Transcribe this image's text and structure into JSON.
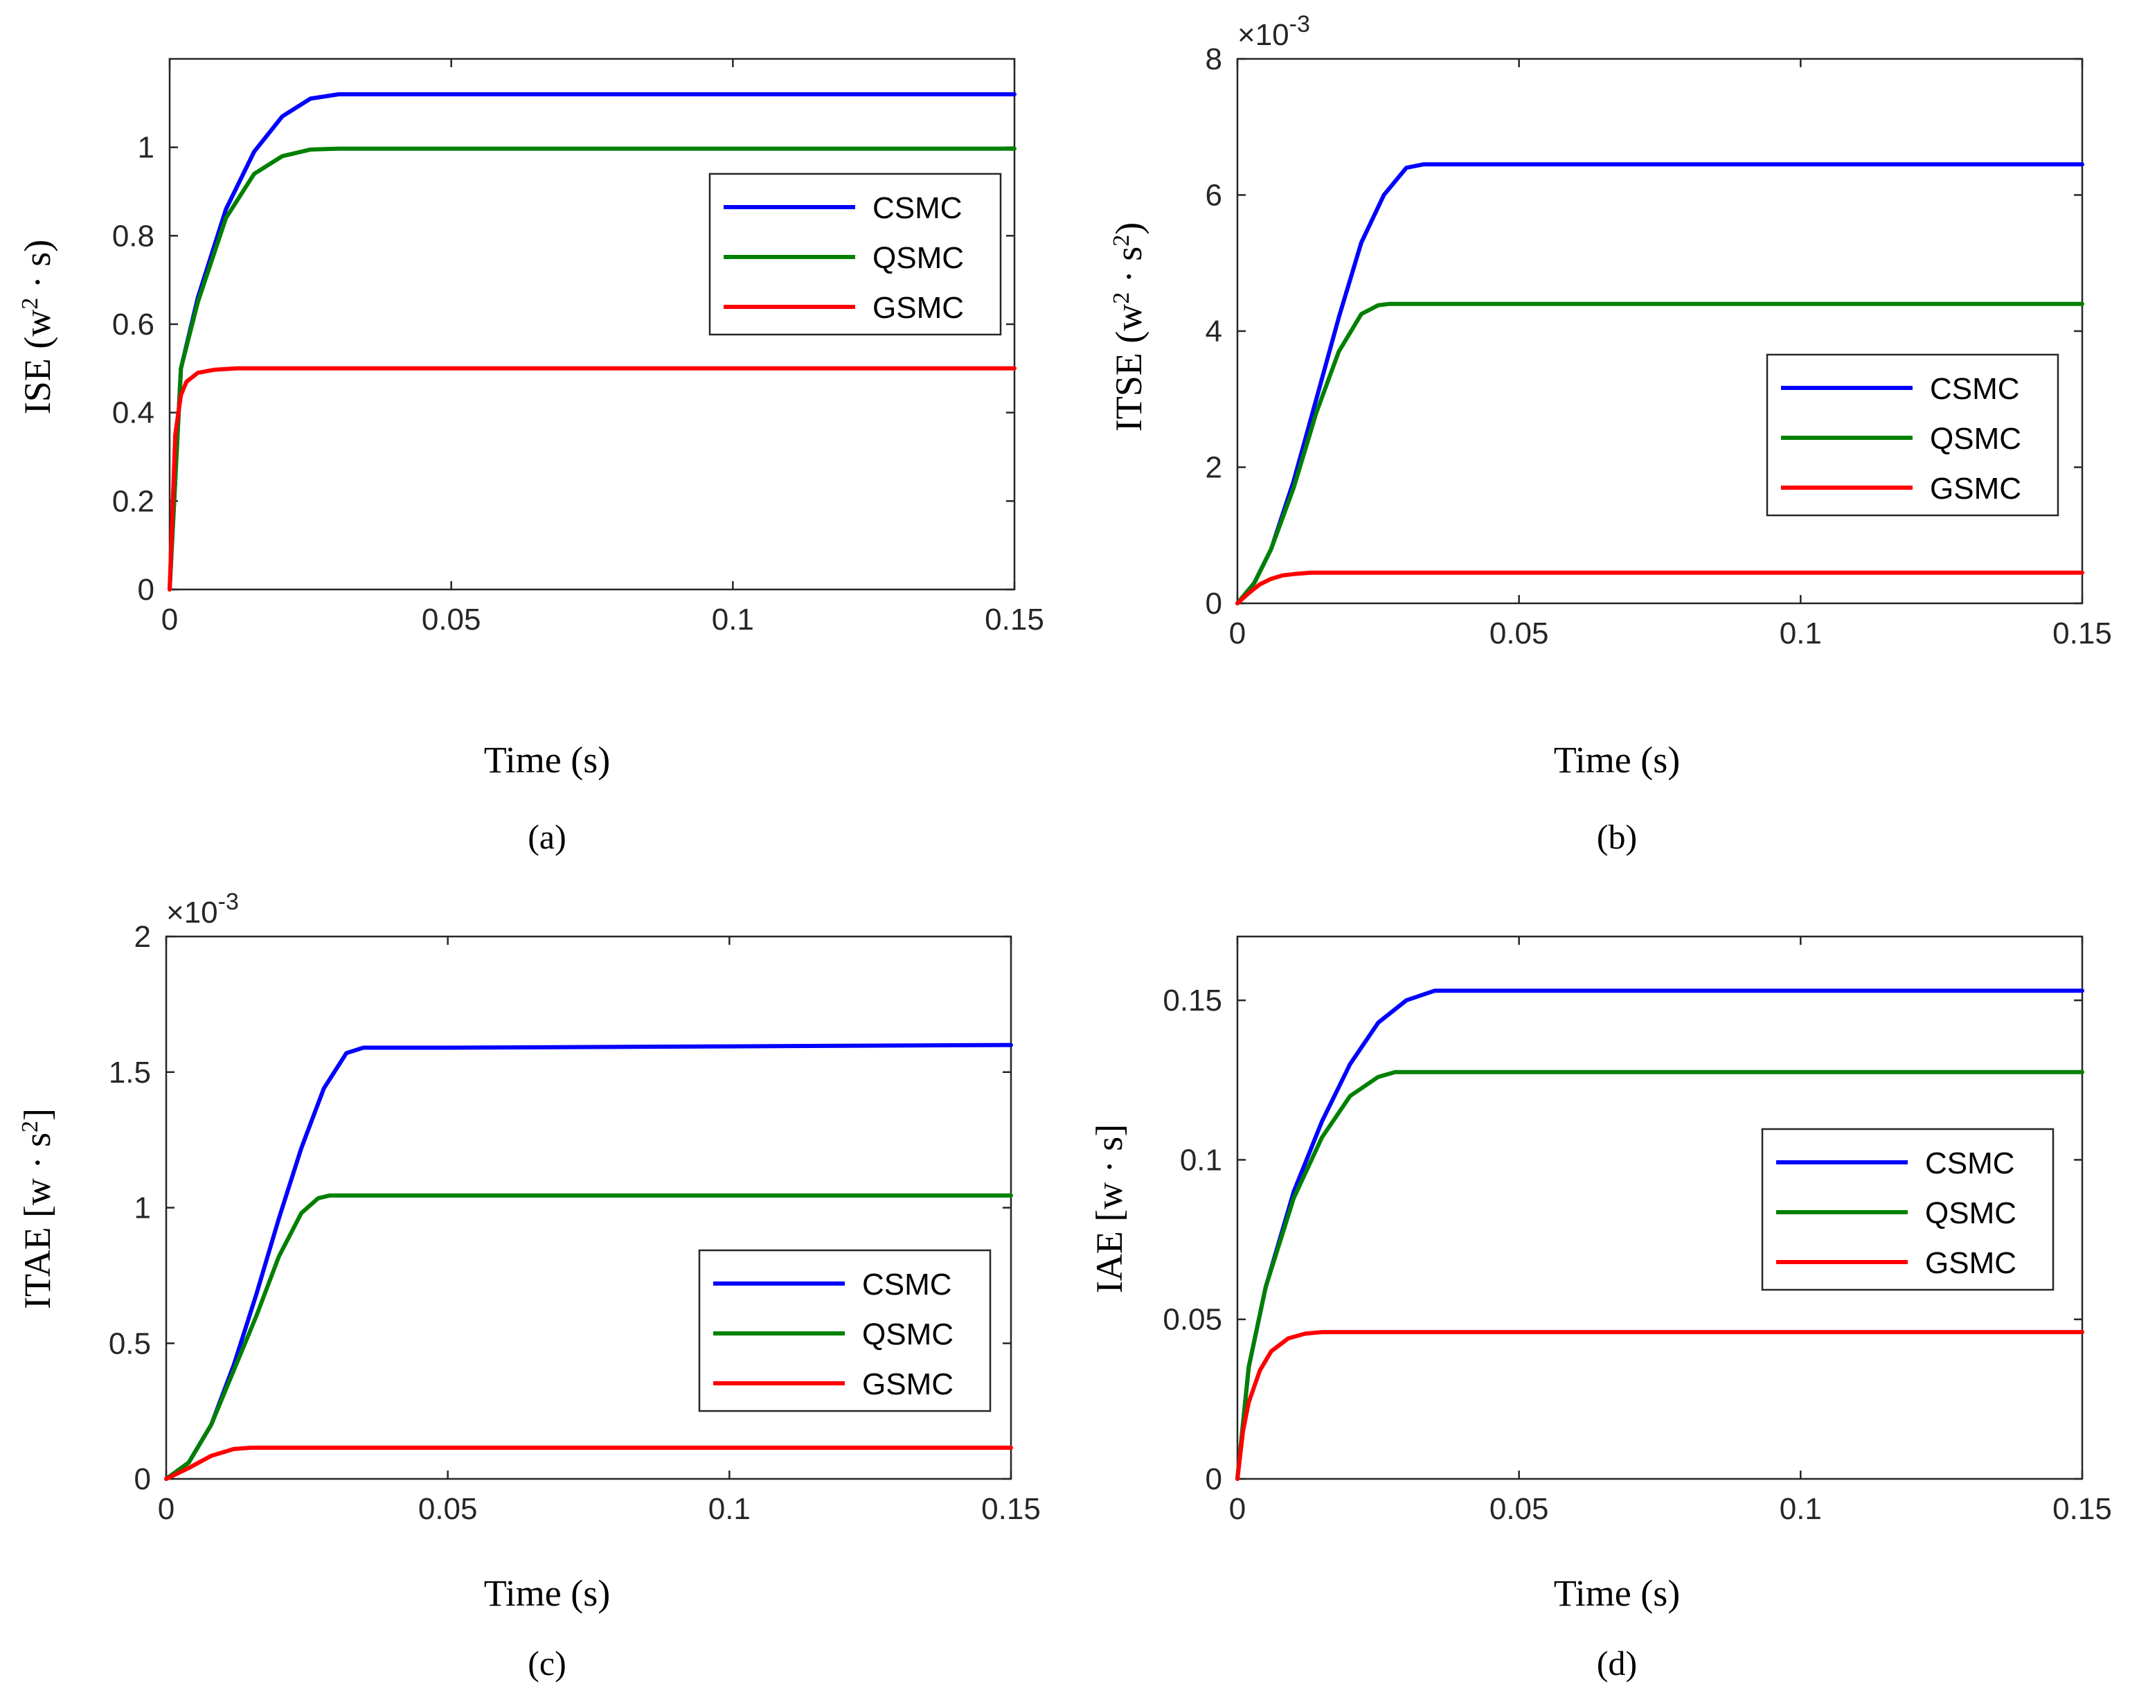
{
  "chart_data": [
    {
      "panel": "(a)",
      "type": "line",
      "xlabel": "Time (s)",
      "ylabel": "ISE  (w² · s)",
      "ylabel_parts": [
        "ISE  (w",
        "2",
        " · s)"
      ],
      "multiplier": "",
      "xlim": [
        0,
        0.15
      ],
      "ylim": [
        0,
        1.2
      ],
      "xticks": [
        0,
        0.05,
        0.1,
        0.15
      ],
      "xtick_labels": [
        "0",
        "0.05",
        "0.1",
        "0.15"
      ],
      "yticks": [
        0,
        0.2,
        0.4,
        0.6,
        0.8,
        1.0
      ],
      "ytick_labels": [
        "0",
        "0.2",
        "0.4",
        "0.6",
        "0.8",
        "1"
      ],
      "grid": false,
      "legend_position": "upper-right",
      "series": [
        {
          "name": "CSMC",
          "color": "#0000ff",
          "x": [
            0,
            0.002,
            0.005,
            0.01,
            0.015,
            0.02,
            0.025,
            0.03,
            0.035,
            0.05,
            0.1,
            0.15
          ],
          "y": [
            0,
            0.5,
            0.66,
            0.86,
            0.99,
            1.07,
            1.11,
            1.12,
            1.12,
            1.12,
            1.12,
            1.12
          ]
        },
        {
          "name": "QSMC",
          "color": "#008000",
          "x": [
            0,
            0.002,
            0.005,
            0.01,
            0.015,
            0.02,
            0.025,
            0.03,
            0.05,
            0.1,
            0.15
          ],
          "y": [
            0,
            0.5,
            0.65,
            0.84,
            0.94,
            0.98,
            0.995,
            0.997,
            0.997,
            0.997,
            0.997
          ]
        },
        {
          "name": "GSMC",
          "color": "#ff0000",
          "x": [
            0,
            0.001,
            0.002,
            0.003,
            0.005,
            0.008,
            0.012,
            0.05,
            0.1,
            0.15
          ],
          "y": [
            0,
            0.35,
            0.44,
            0.47,
            0.49,
            0.497,
            0.5,
            0.5,
            0.5,
            0.5
          ]
        }
      ]
    },
    {
      "panel": "(b)",
      "type": "line",
      "xlabel": "Time (s)",
      "ylabel": "ITSE  (w² · s²)",
      "ylabel_parts": [
        "ITSE  (w",
        "2",
        " · s",
        "2",
        ")"
      ],
      "multiplier": "×10-3",
      "multiplier_parts": [
        "×10",
        "-3"
      ],
      "xlim": [
        0,
        0.15
      ],
      "ylim": [
        0,
        8
      ],
      "xticks": [
        0,
        0.05,
        0.1,
        0.15
      ],
      "xtick_labels": [
        "0",
        "0.05",
        "0.1",
        "0.15"
      ],
      "yticks": [
        0,
        2,
        4,
        6,
        8
      ],
      "ytick_labels": [
        "0",
        "2",
        "4",
        "6",
        "8"
      ],
      "grid": false,
      "legend_position": "right",
      "series": [
        {
          "name": "CSMC",
          "color": "#0000ff",
          "x": [
            0,
            0.003,
            0.006,
            0.01,
            0.014,
            0.018,
            0.022,
            0.026,
            0.03,
            0.033,
            0.05,
            0.1,
            0.15
          ],
          "y": [
            0,
            0.3,
            0.8,
            1.8,
            3.0,
            4.2,
            5.3,
            6.0,
            6.4,
            6.45,
            6.45,
            6.45,
            6.45
          ]
        },
        {
          "name": "QSMC",
          "color": "#008000",
          "x": [
            0,
            0.003,
            0.006,
            0.01,
            0.014,
            0.018,
            0.022,
            0.025,
            0.027,
            0.05,
            0.1,
            0.15
          ],
          "y": [
            0,
            0.3,
            0.8,
            1.7,
            2.8,
            3.7,
            4.25,
            4.38,
            4.4,
            4.4,
            4.4,
            4.4
          ]
        },
        {
          "name": "GSMC",
          "color": "#ff0000",
          "x": [
            0,
            0.002,
            0.004,
            0.006,
            0.008,
            0.01,
            0.013,
            0.05,
            0.1,
            0.15
          ],
          "y": [
            0,
            0.15,
            0.28,
            0.36,
            0.41,
            0.43,
            0.45,
            0.45,
            0.45,
            0.45
          ]
        }
      ]
    },
    {
      "panel": "(c)",
      "type": "line",
      "xlabel": "Time (s)",
      "ylabel": "ITAE  [w · s²]",
      "ylabel_parts": [
        "ITAE  [w · s",
        "2",
        "]"
      ],
      "multiplier": "×10-3",
      "multiplier_parts": [
        "×10",
        "-3"
      ],
      "xlim": [
        0,
        0.15
      ],
      "ylim": [
        0,
        2
      ],
      "xticks": [
        0,
        0.05,
        0.1,
        0.15
      ],
      "xtick_labels": [
        "0",
        "0.05",
        "0.1",
        "0.15"
      ],
      "yticks": [
        0,
        0.5,
        1,
        1.5,
        2
      ],
      "ytick_labels": [
        "0",
        "0.5",
        "1",
        "1.5",
        "2"
      ],
      "grid": false,
      "legend_position": "lower-right",
      "series": [
        {
          "name": "CSMC",
          "color": "#0000ff",
          "x": [
            0,
            0.004,
            0.008,
            0.012,
            0.016,
            0.02,
            0.024,
            0.028,
            0.032,
            0.035,
            0.05,
            0.1,
            0.15
          ],
          "y": [
            0,
            0.06,
            0.2,
            0.42,
            0.68,
            0.96,
            1.22,
            1.44,
            1.57,
            1.59,
            1.59,
            1.595,
            1.6
          ]
        },
        {
          "name": "QSMC",
          "color": "#008000",
          "x": [
            0,
            0.004,
            0.008,
            0.012,
            0.016,
            0.02,
            0.024,
            0.027,
            0.029,
            0.05,
            0.1,
            0.15
          ],
          "y": [
            0,
            0.06,
            0.2,
            0.4,
            0.6,
            0.82,
            0.98,
            1.035,
            1.045,
            1.045,
            1.045,
            1.045
          ]
        },
        {
          "name": "GSMC",
          "color": "#ff0000",
          "x": [
            0,
            0.004,
            0.008,
            0.012,
            0.015,
            0.05,
            0.1,
            0.15
          ],
          "y": [
            0,
            0.04,
            0.085,
            0.11,
            0.115,
            0.115,
            0.115,
            0.115
          ]
        }
      ]
    },
    {
      "panel": "(d)",
      "type": "line",
      "xlabel": "Time (s)",
      "ylabel": "IAE [w · s]",
      "ylabel_parts": [
        "IAE [w · s]"
      ],
      "multiplier": "",
      "xlim": [
        0,
        0.15
      ],
      "ylim": [
        0,
        0.17
      ],
      "xticks": [
        0,
        0.05,
        0.1,
        0.15
      ],
      "xtick_labels": [
        "0",
        "0.05",
        "0.1",
        "0.15"
      ],
      "yticks": [
        0,
        0.05,
        0.1,
        0.15
      ],
      "ytick_labels": [
        "0",
        "0.05",
        "0.1",
        "0.15"
      ],
      "grid": false,
      "legend_position": "right",
      "series": [
        {
          "name": "CSMC",
          "color": "#0000ff",
          "x": [
            0,
            0.002,
            0.005,
            0.01,
            0.015,
            0.02,
            0.025,
            0.03,
            0.035,
            0.05,
            0.1,
            0.15
          ],
          "y": [
            0,
            0.035,
            0.06,
            0.09,
            0.112,
            0.13,
            0.143,
            0.15,
            0.153,
            0.153,
            0.153,
            0.153
          ]
        },
        {
          "name": "QSMC",
          "color": "#008000",
          "x": [
            0,
            0.002,
            0.005,
            0.01,
            0.015,
            0.02,
            0.025,
            0.028,
            0.05,
            0.1,
            0.15
          ],
          "y": [
            0,
            0.035,
            0.06,
            0.088,
            0.107,
            0.12,
            0.126,
            0.1275,
            0.1275,
            0.1275,
            0.1275
          ]
        },
        {
          "name": "GSMC",
          "color": "#ff0000",
          "x": [
            0,
            0.001,
            0.002,
            0.004,
            0.006,
            0.009,
            0.012,
            0.015,
            0.05,
            0.1,
            0.15
          ],
          "y": [
            0,
            0.015,
            0.024,
            0.034,
            0.04,
            0.044,
            0.0455,
            0.046,
            0.046,
            0.046,
            0.046
          ]
        }
      ]
    }
  ]
}
